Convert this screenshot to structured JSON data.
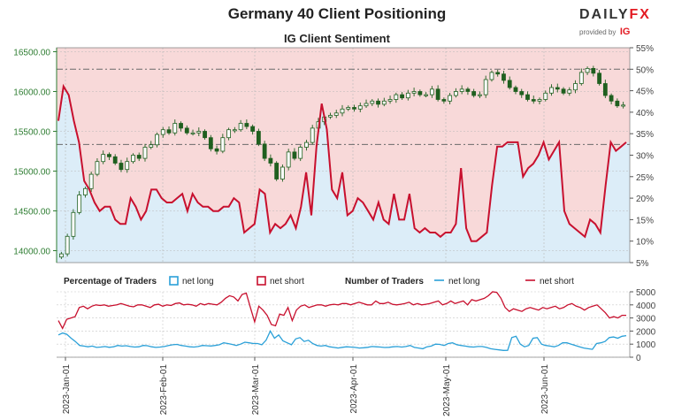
{
  "header": {
    "title": "Germany 40 Client Positioning",
    "subtitle": "IG Client Sentiment",
    "logo_brand_left": "DAILY",
    "logo_brand_right": "FX",
    "logo_provided": "provided by",
    "logo_ig": "IG"
  },
  "legend": {
    "pct_heading": "Percentage of Traders",
    "pct_long": "net long",
    "pct_short": "net short",
    "num_heading": "Number of Traders",
    "num_long": "net long",
    "num_short": "net short"
  },
  "colors": {
    "long": "#2aa0d8",
    "short": "#c8102e",
    "short_fill": "#f8d9d9",
    "long_fill": "#dcedf8",
    "candle": "#1f5f1f",
    "axis_green": "#2e7d32"
  },
  "chart_data": [
    {
      "type": "line",
      "title": "Germany 40 Client Positioning",
      "subtitle": "IG Client Sentiment",
      "price_axis": {
        "ticks": [
          "14000.00",
          "14500.00",
          "15000.00",
          "15500.00",
          "16000.00",
          "16500.00"
        ],
        "ylim": [
          13850,
          16550
        ]
      },
      "percent_axis": {
        "ticks": [
          "5%",
          "10%",
          "15%",
          "20%",
          "25%",
          "30%",
          "35%",
          "40%",
          "45%",
          "50%",
          "55%"
        ],
        "ylim": [
          5,
          55
        ]
      },
      "x_ticks": [
        "2023-Jan-01",
        "2023-Feb-01",
        "2023-Mar-01",
        "2023-Apr-01",
        "2023-May-01",
        "2023-Jun-01"
      ],
      "reference_lines_pct": [
        50,
        32.5
      ],
      "price_series": [
        13960,
        14180,
        14480,
        14700,
        14780,
        14960,
        15120,
        15210,
        15180,
        15100,
        15020,
        15120,
        15200,
        15160,
        15300,
        15330,
        15460,
        15520,
        15480,
        15600,
        15540,
        15480,
        15480,
        15500,
        15420,
        15280,
        15250,
        15420,
        15520,
        15520,
        15600,
        15560,
        15500,
        15340,
        15160,
        15100,
        14900,
        15050,
        15240,
        15160,
        15300,
        15360,
        15540,
        15620,
        15680,
        15700,
        15730,
        15780,
        15800,
        15780,
        15820,
        15850,
        15880,
        15840,
        15880,
        15900,
        15960,
        15920,
        15980,
        16000,
        15960,
        15960,
        16030,
        15900,
        15880,
        15950,
        16000,
        16030,
        16000,
        15950,
        15960,
        16150,
        16240,
        16220,
        16140,
        16050,
        16000,
        15960,
        15900,
        15880,
        15900,
        15980,
        16050,
        16030,
        15980,
        16020,
        16100,
        16240,
        16290,
        16230,
        16100,
        15950,
        15880,
        15820,
        15830
      ],
      "net_short_pct_series": [
        38,
        46,
        44,
        38,
        33,
        24,
        22,
        19,
        17,
        18,
        18,
        15,
        14,
        14,
        20,
        18,
        15,
        17,
        22,
        22,
        20,
        19,
        19,
        20,
        21,
        17,
        21,
        19,
        18,
        18,
        17,
        17,
        18,
        18,
        20,
        19,
        12,
        13,
        14,
        22,
        21,
        12,
        14,
        13,
        14,
        16,
        13,
        18,
        26,
        16,
        32,
        42,
        36,
        22,
        20,
        26,
        16,
        17,
        20,
        19,
        17,
        15,
        19,
        15,
        14,
        21,
        15,
        15,
        21,
        13,
        12,
        13,
        12,
        12,
        11,
        12,
        12,
        14,
        27,
        13,
        10,
        10,
        11,
        12,
        23,
        32,
        32,
        33,
        33,
        33,
        25,
        27,
        28,
        30,
        33,
        29,
        31,
        33,
        17,
        14,
        13,
        12,
        11,
        15,
        14,
        12,
        23,
        33,
        31,
        32,
        33
      ],
      "net_long_pct_series": [
        62,
        54,
        56,
        62,
        67,
        76,
        78,
        81,
        83,
        82,
        82,
        85,
        86,
        86,
        80,
        82,
        85,
        83,
        78,
        78,
        80,
        81,
        81,
        80,
        79,
        83,
        79,
        81,
        82,
        82,
        83,
        83,
        82,
        82,
        80,
        81,
        88,
        87,
        86,
        78,
        79,
        88,
        86,
        87,
        86,
        84,
        87,
        82,
        74,
        84,
        68,
        58,
        64,
        78,
        80,
        74,
        84,
        83,
        80,
        81,
        83,
        85,
        81,
        85,
        86,
        79,
        85,
        85,
        79,
        87,
        88,
        87,
        88,
        88,
        89,
        88,
        88,
        86,
        73,
        87,
        90,
        90,
        89,
        88,
        77,
        68,
        68,
        67,
        67,
        67,
        75,
        73,
        72,
        70,
        67,
        71,
        69,
        67,
        83,
        86,
        87,
        88,
        89,
        85,
        86,
        88,
        77,
        67,
        69,
        68,
        67
      ]
    },
    {
      "type": "line",
      "y_ticks": [
        "0",
        "1000",
        "2000",
        "3000",
        "4000",
        "5000"
      ],
      "ylim": [
        0,
        5000
      ],
      "series": [
        {
          "name": "net long",
          "values": [
            1700,
            1850,
            1750,
            1450,
            1200,
            900,
            850,
            800,
            850,
            750,
            780,
            820,
            760,
            800,
            900,
            850,
            880,
            820,
            780,
            800,
            900,
            880,
            800,
            750,
            780,
            820,
            900,
            950,
            980,
            900,
            850,
            800,
            780,
            820,
            900,
            880,
            860,
            900,
            950,
            1100,
            1050,
            980,
            900,
            1000,
            1150,
            1100,
            1050,
            1050,
            950,
            1300,
            2000,
            1450,
            1700,
            1250,
            1100,
            950,
            1400,
            1500,
            1200,
            1300,
            1050,
            900,
            850,
            900,
            800,
            750,
            700,
            760,
            800,
            780,
            750,
            700,
            720,
            760,
            820,
            800,
            780,
            740,
            760,
            800,
            820,
            780,
            820,
            900,
            750,
            700,
            650,
            800,
            850,
            1000,
            980,
            900,
            1050,
            1100,
            950,
            900,
            850,
            800,
            780,
            820,
            820,
            750,
            650,
            600,
            560,
            520,
            530,
            1500,
            1600,
            1000,
            800,
            900,
            1450,
            1500,
            1000,
            900,
            850,
            800,
            900,
            1100,
            1100,
            1000,
            900,
            800,
            700,
            650,
            600,
            1050,
            1100,
            1200,
            1500,
            1550,
            1450,
            1600,
            1650
          ]
        },
        {
          "name": "net short",
          "values": [
            2800,
            2200,
            2900,
            3000,
            3100,
            3800,
            3900,
            3700,
            3900,
            4000,
            3950,
            4000,
            3900,
            3950,
            4000,
            4100,
            4000,
            3900,
            3850,
            4000,
            4000,
            3900,
            3800,
            4000,
            4050,
            3900,
            4000,
            3950,
            4100,
            4150,
            4000,
            4050,
            4000,
            3900,
            4100,
            4000,
            4100,
            4050,
            4000,
            4200,
            4500,
            4700,
            4600,
            4300,
            4800,
            4900,
            3800,
            2700,
            3900,
            3600,
            3200,
            2500,
            2400,
            3300,
            3200,
            3800,
            2800,
            3600,
            3900,
            4000,
            3800,
            3900,
            4000,
            4000,
            3900,
            4000,
            4050,
            4000,
            4100,
            4100,
            4000,
            4100,
            4200,
            4100,
            4000,
            4000,
            4300,
            4100,
            4100,
            4200,
            4050,
            4000,
            4050,
            4100,
            4200,
            4000,
            4100,
            4000,
            4050,
            4100,
            4200,
            4300,
            4000,
            4100,
            4300,
            4100,
            4200,
            4300,
            4000,
            4400,
            4300,
            4400,
            4500,
            4700,
            5000,
            4950,
            4500,
            3800,
            3500,
            3700,
            3600,
            3500,
            3700,
            3800,
            3700,
            3600,
            3800,
            3700,
            3800,
            3900,
            3700,
            3800,
            4000,
            4100,
            3900,
            3800,
            3600,
            3800,
            3900,
            4000,
            3700,
            3400,
            3000,
            3100,
            3000,
            3200,
            3200
          ]
        }
      ]
    }
  ]
}
